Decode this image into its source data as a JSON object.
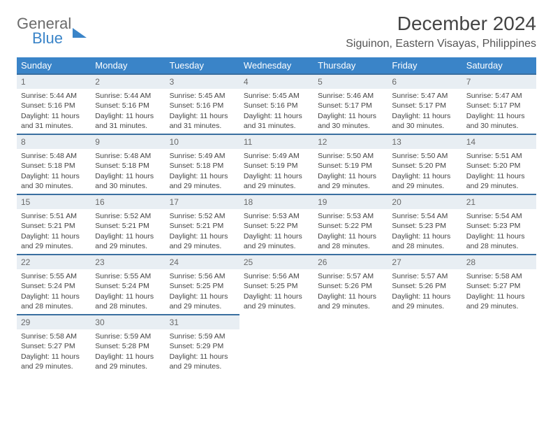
{
  "brand": {
    "line1": "General",
    "line2": "Blue"
  },
  "title": "December 2024",
  "location": "Siguinon, Eastern Visayas, Philippines",
  "colors": {
    "header_bg": "#3a84c8",
    "daynum_bg": "#e8eef3",
    "daynum_border": "#3a6fa0",
    "text": "#444444",
    "brand_gray": "#6b6b6b",
    "brand_blue": "#3a84c8"
  },
  "weekdays": [
    "Sunday",
    "Monday",
    "Tuesday",
    "Wednesday",
    "Thursday",
    "Friday",
    "Saturday"
  ],
  "days": [
    {
      "n": "1",
      "sr": "5:44 AM",
      "ss": "5:16 PM",
      "dl": "11 hours and 31 minutes."
    },
    {
      "n": "2",
      "sr": "5:44 AM",
      "ss": "5:16 PM",
      "dl": "11 hours and 31 minutes."
    },
    {
      "n": "3",
      "sr": "5:45 AM",
      "ss": "5:16 PM",
      "dl": "11 hours and 31 minutes."
    },
    {
      "n": "4",
      "sr": "5:45 AM",
      "ss": "5:16 PM",
      "dl": "11 hours and 31 minutes."
    },
    {
      "n": "5",
      "sr": "5:46 AM",
      "ss": "5:17 PM",
      "dl": "11 hours and 30 minutes."
    },
    {
      "n": "6",
      "sr": "5:47 AM",
      "ss": "5:17 PM",
      "dl": "11 hours and 30 minutes."
    },
    {
      "n": "7",
      "sr": "5:47 AM",
      "ss": "5:17 PM",
      "dl": "11 hours and 30 minutes."
    },
    {
      "n": "8",
      "sr": "5:48 AM",
      "ss": "5:18 PM",
      "dl": "11 hours and 30 minutes."
    },
    {
      "n": "9",
      "sr": "5:48 AM",
      "ss": "5:18 PM",
      "dl": "11 hours and 30 minutes."
    },
    {
      "n": "10",
      "sr": "5:49 AM",
      "ss": "5:18 PM",
      "dl": "11 hours and 29 minutes."
    },
    {
      "n": "11",
      "sr": "5:49 AM",
      "ss": "5:19 PM",
      "dl": "11 hours and 29 minutes."
    },
    {
      "n": "12",
      "sr": "5:50 AM",
      "ss": "5:19 PM",
      "dl": "11 hours and 29 minutes."
    },
    {
      "n": "13",
      "sr": "5:50 AM",
      "ss": "5:20 PM",
      "dl": "11 hours and 29 minutes."
    },
    {
      "n": "14",
      "sr": "5:51 AM",
      "ss": "5:20 PM",
      "dl": "11 hours and 29 minutes."
    },
    {
      "n": "15",
      "sr": "5:51 AM",
      "ss": "5:21 PM",
      "dl": "11 hours and 29 minutes."
    },
    {
      "n": "16",
      "sr": "5:52 AM",
      "ss": "5:21 PM",
      "dl": "11 hours and 29 minutes."
    },
    {
      "n": "17",
      "sr": "5:52 AM",
      "ss": "5:21 PM",
      "dl": "11 hours and 29 minutes."
    },
    {
      "n": "18",
      "sr": "5:53 AM",
      "ss": "5:22 PM",
      "dl": "11 hours and 29 minutes."
    },
    {
      "n": "19",
      "sr": "5:53 AM",
      "ss": "5:22 PM",
      "dl": "11 hours and 28 minutes."
    },
    {
      "n": "20",
      "sr": "5:54 AM",
      "ss": "5:23 PM",
      "dl": "11 hours and 28 minutes."
    },
    {
      "n": "21",
      "sr": "5:54 AM",
      "ss": "5:23 PM",
      "dl": "11 hours and 28 minutes."
    },
    {
      "n": "22",
      "sr": "5:55 AM",
      "ss": "5:24 PM",
      "dl": "11 hours and 28 minutes."
    },
    {
      "n": "23",
      "sr": "5:55 AM",
      "ss": "5:24 PM",
      "dl": "11 hours and 28 minutes."
    },
    {
      "n": "24",
      "sr": "5:56 AM",
      "ss": "5:25 PM",
      "dl": "11 hours and 29 minutes."
    },
    {
      "n": "25",
      "sr": "5:56 AM",
      "ss": "5:25 PM",
      "dl": "11 hours and 29 minutes."
    },
    {
      "n": "26",
      "sr": "5:57 AM",
      "ss": "5:26 PM",
      "dl": "11 hours and 29 minutes."
    },
    {
      "n": "27",
      "sr": "5:57 AM",
      "ss": "5:26 PM",
      "dl": "11 hours and 29 minutes."
    },
    {
      "n": "28",
      "sr": "5:58 AM",
      "ss": "5:27 PM",
      "dl": "11 hours and 29 minutes."
    },
    {
      "n": "29",
      "sr": "5:58 AM",
      "ss": "5:27 PM",
      "dl": "11 hours and 29 minutes."
    },
    {
      "n": "30",
      "sr": "5:59 AM",
      "ss": "5:28 PM",
      "dl": "11 hours and 29 minutes."
    },
    {
      "n": "31",
      "sr": "5:59 AM",
      "ss": "5:29 PM",
      "dl": "11 hours and 29 minutes."
    }
  ],
  "labels": {
    "sunrise": "Sunrise:",
    "sunset": "Sunset:",
    "daylight": "Daylight:"
  }
}
